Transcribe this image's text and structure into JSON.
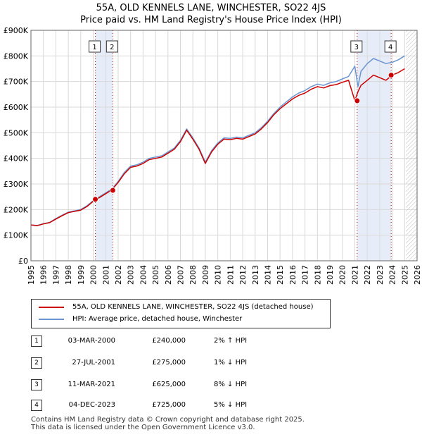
{
  "title_line1": "55A, OLD KENNELS LANE, WINCHESTER, SO22 4JS",
  "title_line2": "Price paid vs. HM Land Registry's House Price Index (HPI)",
  "legend": {
    "property": "55A, OLD KENNELS LANE, WINCHESTER, SO22 4JS (detached house)",
    "hpi": "HPI: Average price, detached house, Winchester"
  },
  "transactions": [
    {
      "num": "1",
      "date": "03-MAR-2000",
      "price": "£240,000",
      "hpi": "2% ↑ HPI"
    },
    {
      "num": "2",
      "date": "27-JUL-2001",
      "price": "£275,000",
      "hpi": "1% ↓ HPI"
    },
    {
      "num": "3",
      "date": "11-MAR-2021",
      "price": "£625,000",
      "hpi": "8% ↓ HPI"
    },
    {
      "num": "4",
      "date": "04-DEC-2023",
      "price": "£725,000",
      "hpi": "5% ↓ HPI"
    }
  ],
  "footer_line1": "Contains HM Land Registry data © Crown copyright and database right 2025.",
  "footer_line2": "This data is licensed under the Open Government Licence v3.0.",
  "colors": {
    "property": "#cc0000",
    "hpi": "#6a95d0",
    "shade": "#dde6f5"
  },
  "chart_data": {
    "type": "line",
    "xlim": [
      1995,
      2026
    ],
    "ylim": [
      0,
      900000
    ],
    "yticks": [
      0,
      100000,
      200000,
      300000,
      400000,
      500000,
      600000,
      700000,
      800000,
      900000
    ],
    "ytick_labels": [
      "£0",
      "£100K",
      "£200K",
      "£300K",
      "£400K",
      "£500K",
      "£600K",
      "£700K",
      "£800K",
      "£900K"
    ],
    "xticks": [
      1995,
      1996,
      1997,
      1998,
      1999,
      2000,
      2001,
      2002,
      2003,
      2004,
      2005,
      2006,
      2007,
      2008,
      2009,
      2010,
      2011,
      2012,
      2013,
      2014,
      2015,
      2016,
      2017,
      2018,
      2019,
      2020,
      2021,
      2022,
      2023,
      2024,
      2025,
      2026
    ],
    "xtick_labels": [
      "1995",
      "1996",
      "1997",
      "1998",
      "1999",
      "2000",
      "2001",
      "2002",
      "2003",
      "2004",
      "2005",
      "2006",
      "2007",
      "2008",
      "2009",
      "2010",
      "2011",
      "2012",
      "2013",
      "2014",
      "2015",
      "2016",
      "2017",
      "2018",
      "2019",
      "2020",
      "2021",
      "2022",
      "2023",
      "2024",
      "2025",
      "2026"
    ],
    "shaded_ranges": [
      [
        2000.17,
        2001.57
      ],
      [
        2021.19,
        2023.92
      ]
    ],
    "forecast_start": 2025.1,
    "series": [
      {
        "name": "HPI: Average price, detached house, Winchester",
        "x": [
          1995,
          1995.5,
          1996,
          1996.5,
          1997,
          1997.5,
          1998,
          1998.5,
          1999,
          1999.5,
          2000,
          2000.5,
          2001,
          2001.5,
          2002,
          2002.5,
          2003,
          2003.5,
          2004,
          2004.5,
          2005,
          2005.5,
          2006,
          2006.5,
          2007,
          2007.5,
          2008,
          2008.5,
          2009,
          2009.5,
          2010,
          2010.5,
          2011,
          2011.5,
          2012,
          2012.5,
          2013,
          2013.5,
          2014,
          2014.5,
          2015,
          2015.5,
          2016,
          2016.5,
          2017,
          2017.5,
          2018,
          2018.5,
          2019,
          2019.5,
          2020,
          2020.5,
          2021,
          2021.25,
          2021.5,
          2022,
          2022.5,
          2023,
          2023.5,
          2024,
          2024.5,
          2025
        ],
        "values": [
          140000,
          138000,
          145000,
          150000,
          165000,
          178000,
          190000,
          195000,
          200000,
          215000,
          235000,
          250000,
          265000,
          280000,
          310000,
          345000,
          370000,
          375000,
          385000,
          400000,
          405000,
          410000,
          425000,
          440000,
          470000,
          515000,
          480000,
          440000,
          385000,
          430000,
          460000,
          480000,
          478000,
          483000,
          480000,
          490000,
          500000,
          520000,
          545000,
          575000,
          600000,
          620000,
          640000,
          655000,
          665000,
          680000,
          690000,
          685000,
          695000,
          700000,
          710000,
          720000,
          760000,
          680000,
          740000,
          770000,
          790000,
          780000,
          770000,
          775000,
          785000,
          800000
        ]
      },
      {
        "name": "55A, OLD KENNELS LANE, WINCHESTER, SO22 4JS (detached house)",
        "x": [
          1995,
          1995.5,
          1996,
          1996.5,
          1997,
          1997.5,
          1998,
          1998.5,
          1999,
          1999.5,
          2000,
          2000.5,
          2001,
          2001.5,
          2002,
          2002.5,
          2003,
          2003.5,
          2004,
          2004.5,
          2005,
          2005.5,
          2006,
          2006.5,
          2007,
          2007.5,
          2008,
          2008.5,
          2009,
          2009.5,
          2010,
          2010.5,
          2011,
          2011.5,
          2012,
          2012.5,
          2013,
          2013.5,
          2014,
          2014.5,
          2015,
          2015.5,
          2016,
          2016.5,
          2017,
          2017.5,
          2018,
          2018.5,
          2019,
          2019.5,
          2020,
          2020.5,
          2021,
          2021.25,
          2021.5,
          2022,
          2022.5,
          2023,
          2023.5,
          2024,
          2024.5,
          2025
        ],
        "values": [
          140000,
          137000,
          144000,
          149000,
          163000,
          176000,
          188000,
          193000,
          198000,
          212000,
          232000,
          247000,
          262000,
          277000,
          306000,
          340000,
          365000,
          370000,
          380000,
          395000,
          400000,
          405000,
          420000,
          435000,
          465000,
          510000,
          475000,
          435000,
          380000,
          425000,
          455000,
          475000,
          473000,
          478000,
          475000,
          485000,
          495000,
          515000,
          540000,
          570000,
          594000,
          613000,
          632000,
          646000,
          655000,
          670000,
          680000,
          675000,
          684000,
          688000,
          697000,
          705000,
          625000,
          660000,
          685000,
          705000,
          725000,
          715000,
          705000,
          725000,
          735000,
          750000
        ]
      }
    ],
    "sales": [
      {
        "label": "1",
        "x": 2000.17,
        "y": 240000
      },
      {
        "label": "2",
        "x": 2001.57,
        "y": 275000
      },
      {
        "label": "3",
        "x": 2021.19,
        "y": 625000
      },
      {
        "label": "4",
        "x": 2023.92,
        "y": 725000
      }
    ]
  }
}
